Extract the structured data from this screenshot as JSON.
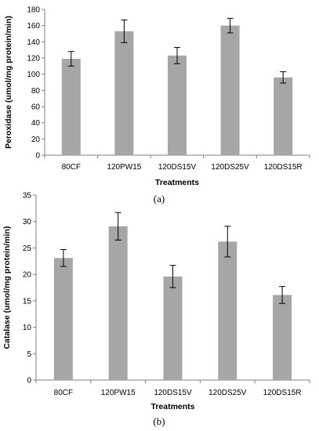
{
  "chart_data": [
    {
      "type": "bar",
      "categories": [
        "80CF",
        "120PW15",
        "120DS15V",
        "120DS25V",
        "120DS15R"
      ],
      "values": [
        119,
        153,
        123,
        160,
        96
      ],
      "errors": [
        9,
        14,
        10,
        9,
        7
      ],
      "xlabel": "Treatments",
      "ylabel": "Peroxidase (umol/mg protein/min)",
      "ylim": [
        0,
        180
      ],
      "yticks": [
        0,
        20,
        40,
        60,
        80,
        100,
        120,
        140,
        160,
        180
      ],
      "panel_label": "(a)",
      "bar_color": "#a6a6a6",
      "grid": false,
      "legend": "none"
    },
    {
      "type": "bar",
      "categories": [
        "80CF",
        "120PW15",
        "120DS15V",
        "120DS25V",
        "120DS15R"
      ],
      "values": [
        23.1,
        29.1,
        19.6,
        26.2,
        16.1
      ],
      "errors": [
        1.6,
        2.6,
        2.1,
        2.9,
        1.6
      ],
      "xlabel": "Treatments",
      "ylabel": "Catalase (umol/mg protein/min)",
      "ylim": [
        0,
        35
      ],
      "yticks": [
        0,
        5,
        10,
        15,
        20,
        25,
        30,
        35
      ],
      "panel_label": "(b)",
      "bar_color": "#a6a6a6",
      "grid": false,
      "legend": "none"
    }
  ]
}
